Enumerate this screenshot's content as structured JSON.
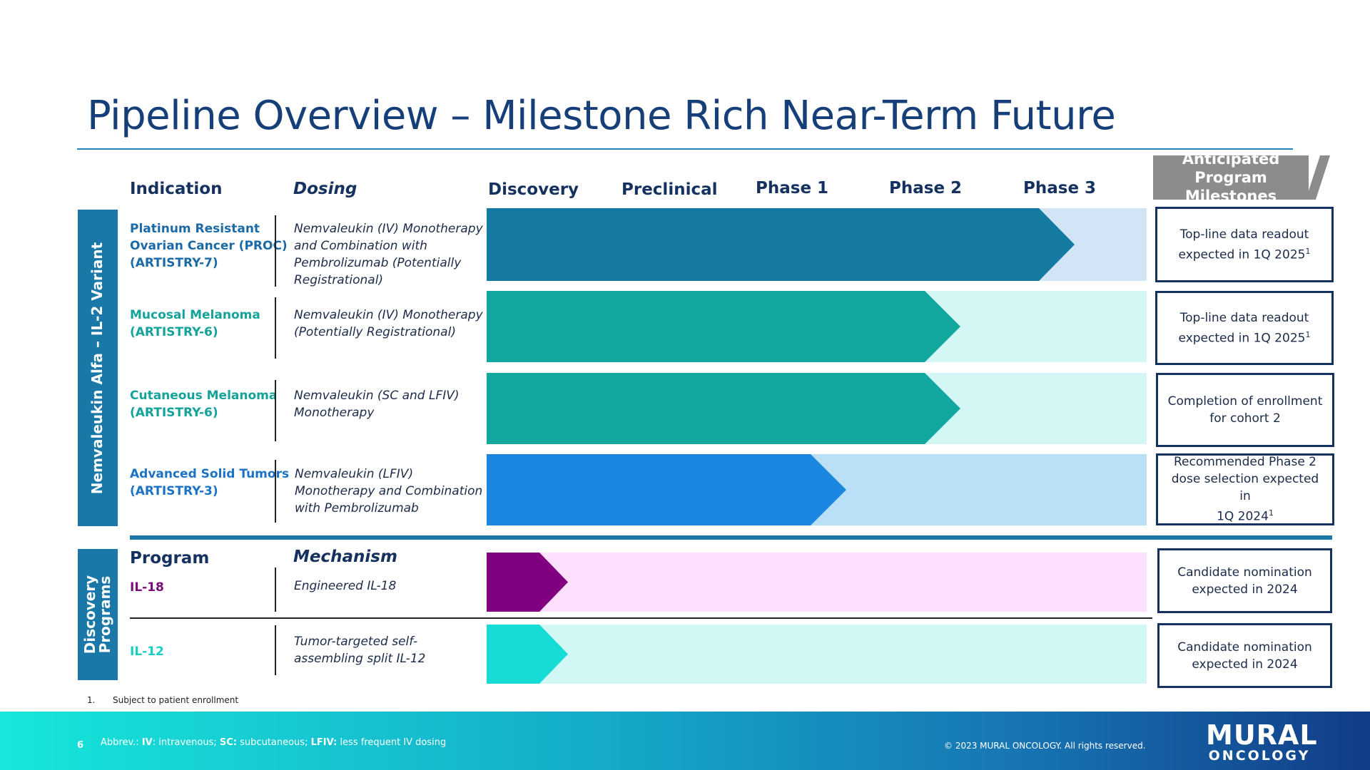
{
  "title": "Pipeline Overview – Milestone Rich Near-Term Future",
  "headers": {
    "indication": "Indication",
    "dosing": "Dosing",
    "phases": [
      "Discovery",
      "Preclinical",
      "Phase 1",
      "Phase 2",
      "Phase 3"
    ],
    "milestones_line1": "Anticipated Program",
    "milestones_line2": "Milestones"
  },
  "nemvaleukin_label": "Nemvaleukin Alfa – IL-2 Variant",
  "discovery_label_line1": "Discovery",
  "discovery_label_line2": "Programs",
  "rows": [
    {
      "indication": [
        "Platinum Resistant",
        "Ovarian Cancer (PROC)",
        "(ARTISTRY-7)"
      ],
      "dosing": [
        "Nemvaleukin (IV) Monotherapy",
        "and Combination with",
        "Pembrolizumab (Potentially",
        "Registrational)"
      ],
      "progress_phase": "Phase 3",
      "milestone": [
        "Top-line data readout",
        "expected in 1Q 2025"
      ],
      "footnote": "1",
      "color_main": "#157aa1",
      "color_bg": "#d1e5f6",
      "color_text": "#1b6aa8"
    },
    {
      "indication": [
        "Mucosal Melanoma",
        "(ARTISTRY-6)"
      ],
      "dosing": [
        "Nemvaleukin (IV) Monotherapy",
        "(Potentially Registrational)"
      ],
      "progress_phase": "Phase 2",
      "milestone": [
        "Top-line data readout",
        "expected in 1Q 2025"
      ],
      "footnote": "1",
      "color_main": "#12a8a0",
      "color_bg": "#d3f7f4",
      "color_text": "#14a39a"
    },
    {
      "indication": [
        "Cutaneous Melanoma",
        "(ARTISTRY-6)"
      ],
      "dosing": [
        "Nemvaleukin (SC and LFIV)",
        "Monotherapy"
      ],
      "progress_phase": "Phase 2",
      "milestone": [
        "Completion of enrollment",
        "for cohort 2"
      ],
      "footnote": "",
      "color_main": "#12a8a0",
      "color_bg": "#d3f7f4",
      "color_text": "#14a39a"
    },
    {
      "indication": [
        "Advanced Solid Tumors",
        "(ARTISTRY-3)"
      ],
      "dosing": [
        "Nemvaleukin (LFIV)",
        "Monotherapy and Combination",
        "with Pembrolizumab"
      ],
      "progress_phase": "Phase 1",
      "milestone": [
        "Recommended Phase 2",
        "dose selection expected in",
        "1Q 2024"
      ],
      "footnote": "1",
      "color_main": "#1b86df",
      "color_bg": "#b9e0f7",
      "color_text": "#1b72c6"
    }
  ],
  "discovery_headers": {
    "program": "Program",
    "mechanism": "Mechanism"
  },
  "programs": [
    {
      "name": "IL-18",
      "mechanism": [
        "Engineered IL-18"
      ],
      "progress_phase": "Discovery",
      "milestone": [
        "Candidate nomination",
        "expected in 2024"
      ],
      "color_main": "#800080",
      "color_bg": "#fde0fd",
      "color_text": "#7a0a7a"
    },
    {
      "name": "IL-12",
      "mechanism": [
        "Tumor-targeted self-",
        "assembling split IL-12"
      ],
      "progress_phase": "Discovery",
      "milestone": [
        "Candidate nomination",
        "expected in 2024"
      ],
      "color_main": "#17dcd6",
      "color_bg": "#d2f8f6",
      "color_text": "#18cfc6"
    }
  ],
  "footnote_number": "1.",
  "footnote_text": "Subject to patient enrollment",
  "page_number": "6",
  "abbrev": {
    "prefix": "Abbrev.:",
    "iv_term": "IV",
    "iv_def": ": intravenous;",
    "sc_term": "SC:",
    "sc_def": "subcutaneous;",
    "lfiv_term": "LFIV:",
    "lfiv_def": "less frequent IV dosing"
  },
  "copyright": "© 2023 MURAL ONCOLOGY. All rights reserved.",
  "logo_line1": "MURAL",
  "logo_line2": "ONCOLOGY"
}
